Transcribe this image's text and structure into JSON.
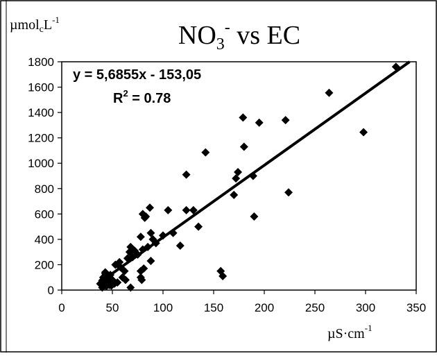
{
  "chart_data": {
    "type": "scatter",
    "title_main": "NO",
    "title_sub": "3",
    "title_sup": "-",
    "title_rest": " vs EC",
    "ylabel_main": "µmol",
    "ylabel_sub": "c",
    "ylabel_unit": "L",
    "ylabel_sup": "-1",
    "xlabel_main": "µS·cm",
    "xlabel_sup": "-1",
    "equation": "y = 5,6855x - 153,05",
    "r2_label": "R",
    "r2_sup": "2",
    "r2_value": " = 0.78",
    "xlim": [
      0,
      350
    ],
    "ylim": [
      0,
      1800
    ],
    "x_ticks": [
      0,
      50,
      100,
      150,
      200,
      250,
      300,
      350
    ],
    "y_ticks": [
      0,
      200,
      400,
      600,
      800,
      1000,
      1200,
      1400,
      1600,
      1800
    ],
    "trendline": {
      "slope": 5.6855,
      "intercept": -153.05
    },
    "points": [
      [
        38,
        50
      ],
      [
        40,
        20
      ],
      [
        40,
        75
      ],
      [
        41,
        100
      ],
      [
        42,
        45
      ],
      [
        43,
        130
      ],
      [
        43,
        140
      ],
      [
        44,
        30
      ],
      [
        45,
        60
      ],
      [
        46,
        90
      ],
      [
        47,
        40
      ],
      [
        48,
        120
      ],
      [
        49,
        35
      ],
      [
        50,
        80
      ],
      [
        52,
        50
      ],
      [
        53,
        200
      ],
      [
        55,
        60
      ],
      [
        57,
        220
      ],
      [
        58,
        180
      ],
      [
        60,
        100
      ],
      [
        62,
        150
      ],
      [
        63,
        80
      ],
      [
        65,
        250
      ],
      [
        67,
        300
      ],
      [
        68,
        20
      ],
      [
        68,
        340
      ],
      [
        70,
        260
      ],
      [
        72,
        310
      ],
      [
        75,
        280
      ],
      [
        78,
        420
      ],
      [
        78,
        150
      ],
      [
        78,
        100
      ],
      [
        79,
        80
      ],
      [
        80,
        320
      ],
      [
        80,
        600
      ],
      [
        81,
        170
      ],
      [
        82,
        570
      ],
      [
        83,
        580
      ],
      [
        85,
        340
      ],
      [
        87,
        650
      ],
      [
        88,
        230
      ],
      [
        88,
        450
      ],
      [
        90,
        400
      ],
      [
        93,
        370
      ],
      [
        100,
        430
      ],
      [
        105,
        630
      ],
      [
        110,
        450
      ],
      [
        117,
        350
      ],
      [
        123,
        910
      ],
      [
        123,
        630
      ],
      [
        130,
        630
      ],
      [
        135,
        500
      ],
      [
        142,
        1085
      ],
      [
        157,
        150
      ],
      [
        159,
        110
      ],
      [
        170,
        750
      ],
      [
        172,
        880
      ],
      [
        174,
        930
      ],
      [
        179,
        1360
      ],
      [
        180,
        1130
      ],
      [
        189,
        900
      ],
      [
        190,
        580
      ],
      [
        195,
        1320
      ],
      [
        221,
        1340
      ],
      [
        224,
        770
      ],
      [
        264,
        1555
      ],
      [
        298,
        1245
      ],
      [
        330,
        1760
      ]
    ]
  }
}
